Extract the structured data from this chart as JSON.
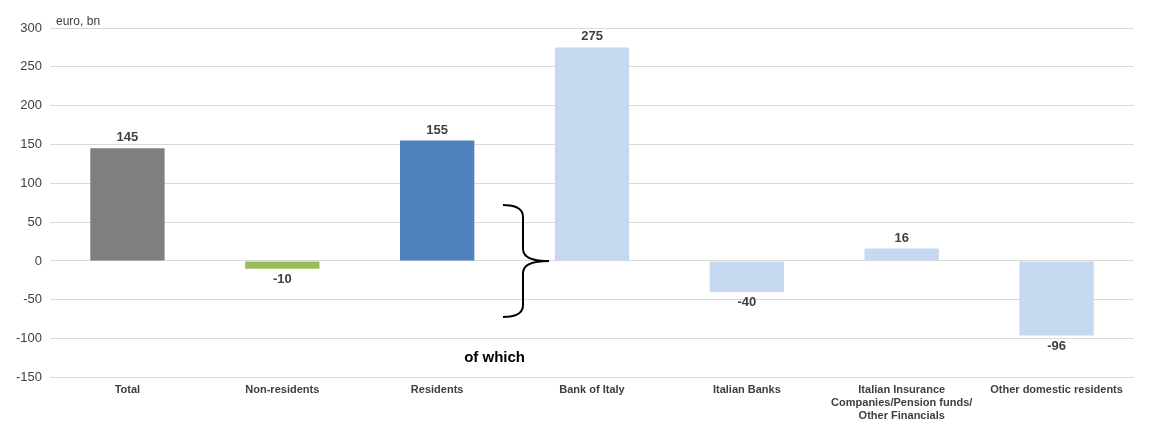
{
  "chart_data": {
    "type": "bar",
    "ylabel": "euro, bn",
    "categories": [
      "Total",
      "Non-residents",
      "Residents",
      "Bank of Italy",
      "Italian Banks",
      "Italian Insurance Companies/Pension funds/ Other Financials",
      "Other domestic residents"
    ],
    "values": [
      145,
      -10,
      155,
      275,
      -40,
      16,
      -96
    ],
    "colors": [
      "#7f7f7f",
      "#9bbb59",
      "#4f81bd",
      "#c6d9f0",
      "#c6d9f0",
      "#c6d9f0",
      "#c6d9f0"
    ],
    "ylim": [
      -150,
      300
    ],
    "yticks": [
      -150,
      -100,
      -50,
      0,
      50,
      100,
      150,
      200,
      250,
      300
    ],
    "grid": "y",
    "legend": false,
    "data_labels": true,
    "annotations": [
      "of which"
    ]
  }
}
